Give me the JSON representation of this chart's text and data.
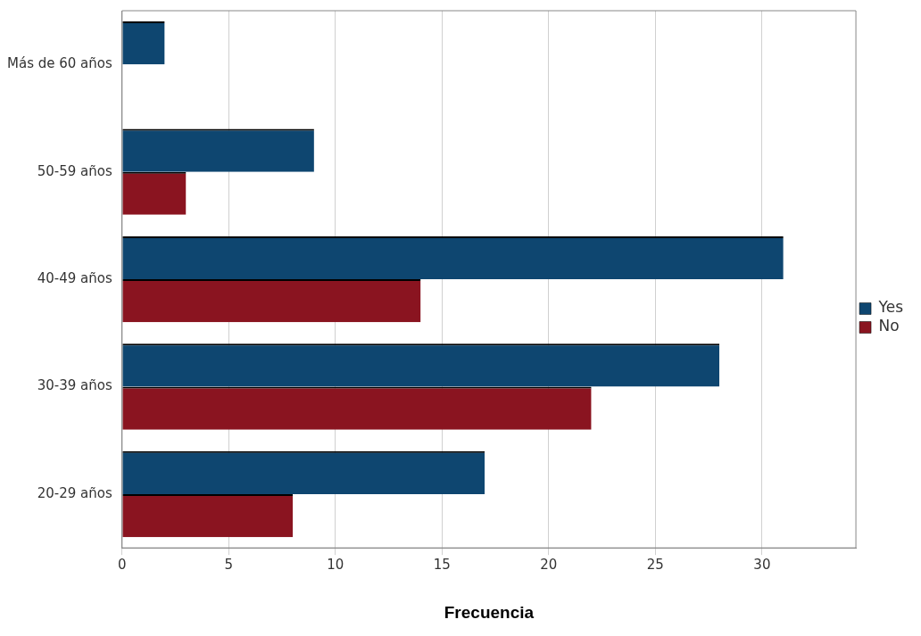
{
  "chart_data": {
    "type": "bar",
    "orientation": "horizontal",
    "xlabel": "Frecuencia",
    "categories": [
      "Más de 60 años",
      "50-59 años",
      "40-49 años",
      "30-39 años",
      "20-29 años"
    ],
    "series": [
      {
        "name": "Yes",
        "color": "#0e4670",
        "values": [
          2,
          9,
          31,
          28,
          17
        ]
      },
      {
        "name": "No",
        "color": "#8a1420",
        "values": [
          0,
          3,
          14,
          22,
          8
        ]
      }
    ],
    "xlim": [
      0,
      34.4
    ],
    "xticks": [
      0,
      5,
      10,
      15,
      20,
      25,
      30
    ],
    "grid": "x",
    "legend": "right"
  }
}
